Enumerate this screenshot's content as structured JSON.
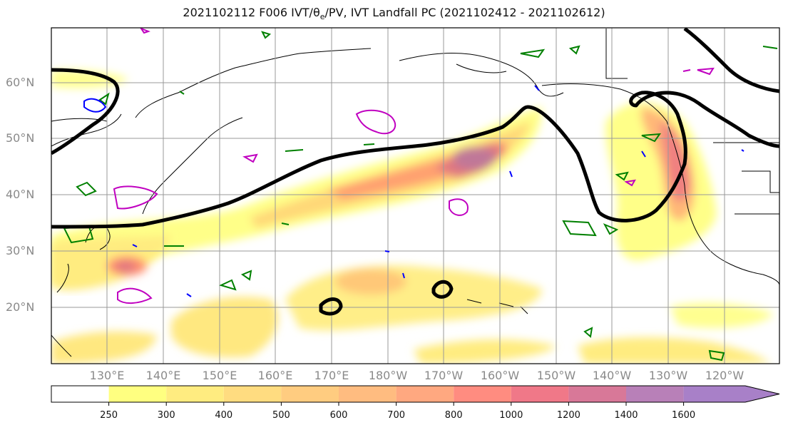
{
  "title": {
    "prefix": "2021102112 F006 IVT/",
    "theta": "θ",
    "theta_sub": "e",
    "suffix": "/PV, IVT Landfall PC (2021102412 - 2021102612)"
  },
  "lat_labels": [
    "60°N",
    "50°N",
    "40°N",
    "30°N",
    "20°N"
  ],
  "lon_labels": [
    "130°E",
    "140°E",
    "150°E",
    "160°E",
    "170°E",
    "180°W",
    "170°W",
    "160°W",
    "150°W",
    "140°W",
    "130°W",
    "120°W"
  ],
  "colorbar": {
    "ticks": [
      "250",
      "300",
      "400",
      "500",
      "600",
      "700",
      "800",
      "1000",
      "1200",
      "1400",
      "1600"
    ],
    "colors": [
      "#ffffff",
      "#ffff80",
      "#ffec80",
      "#ffdc80",
      "#ffcc80",
      "#ffbc80",
      "#ffa880",
      "#ff8c80",
      "#f07888",
      "#d87898",
      "#b880b8",
      "#a880c8"
    ]
  },
  "colors": {
    "pv_contour": "#000000",
    "green_contour": "#008000",
    "magenta_contour": "#c000c0",
    "blue_contour": "#0000ff",
    "coastline": "#000000",
    "grid": "#999999"
  }
}
